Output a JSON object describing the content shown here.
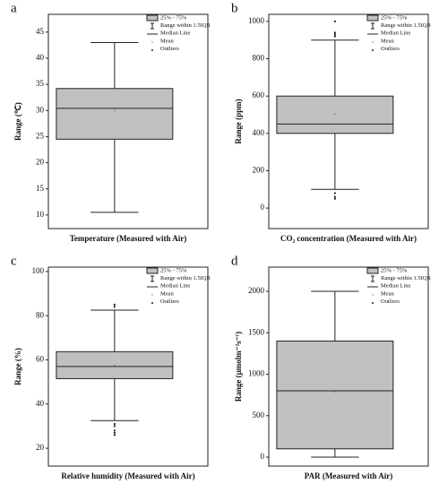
{
  "chart_data": [
    {
      "type": "box",
      "panel": "a",
      "xlabel": "Temperature (Measured with Air)",
      "ylabel": "Range (℃)",
      "ylim": [
        7.4,
        48.4
      ],
      "yticks": [
        10,
        15,
        20,
        25,
        30,
        35,
        40,
        45
      ],
      "color": "#c0c0c0",
      "box": {
        "whisker_low": 10.5,
        "q1": 24.5,
        "median": 30.4,
        "q3": 34.2,
        "whisker_high": 43,
        "mean": 30,
        "outliers": []
      },
      "legend": [
        "25% - 75%",
        "Range within 1.5IQR",
        "Median Line",
        "Mean",
        "Outliers"
      ]
    },
    {
      "type": "box",
      "panel": "b",
      "xlabel": "CO₂ concentration (Measured with Air)",
      "ylabel": "Range (ppm)",
      "ylim": [
        -110,
        1038
      ],
      "yticks": [
        0,
        200,
        400,
        600,
        800,
        1000
      ],
      "color": "#c0c0c0",
      "box": {
        "whisker_low": 100,
        "q1": 400,
        "median": 450,
        "q3": 600,
        "whisker_high": 900,
        "mean": 505,
        "outliers": [
          920,
          930,
          940,
          1000,
          80,
          60,
          50
        ]
      },
      "legend": [
        "25% - 75%",
        "Range within 1.5IQR",
        "Median Line",
        "Mean",
        "Outliers"
      ]
    },
    {
      "type": "box",
      "panel": "c",
      "xlabel": "Relative humidity (Measured with Air)",
      "ylabel": "Range (%)",
      "ylim": [
        11.9,
        102
      ],
      "yticks": [
        20,
        40,
        60,
        80,
        100
      ],
      "color": "#c0c0c0",
      "box": {
        "whisker_low": 32.5,
        "q1": 51.5,
        "median": 57,
        "q3": 63.7,
        "whisker_high": 82.5,
        "mean": 57.5,
        "outliers": [
          84,
          85,
          31,
          30,
          28,
          27,
          26
        ]
      },
      "legend": [
        "25% - 75%",
        "Range within 1.5IQR",
        "Median Line",
        "Mean",
        "Outliers"
      ]
    },
    {
      "type": "box",
      "panel": "d",
      "xlabel": "PAR (Measured with Air)",
      "ylabel": "Range (µmolm⁻²s⁻¹)",
      "ylim": [
        -108,
        2292
      ],
      "yticks": [
        0,
        500,
        1000,
        1500,
        2000
      ],
      "color": "#c0c0c0",
      "box": {
        "whisker_low": 0,
        "q1": 100,
        "median": 800,
        "q3": 1400,
        "whisker_high": 2000,
        "mean": 790,
        "outliers": []
      },
      "legend": [
        "25% - 75%",
        "Range within 1.5IQR",
        "Median Line",
        "Mean",
        "Outliers"
      ]
    }
  ]
}
